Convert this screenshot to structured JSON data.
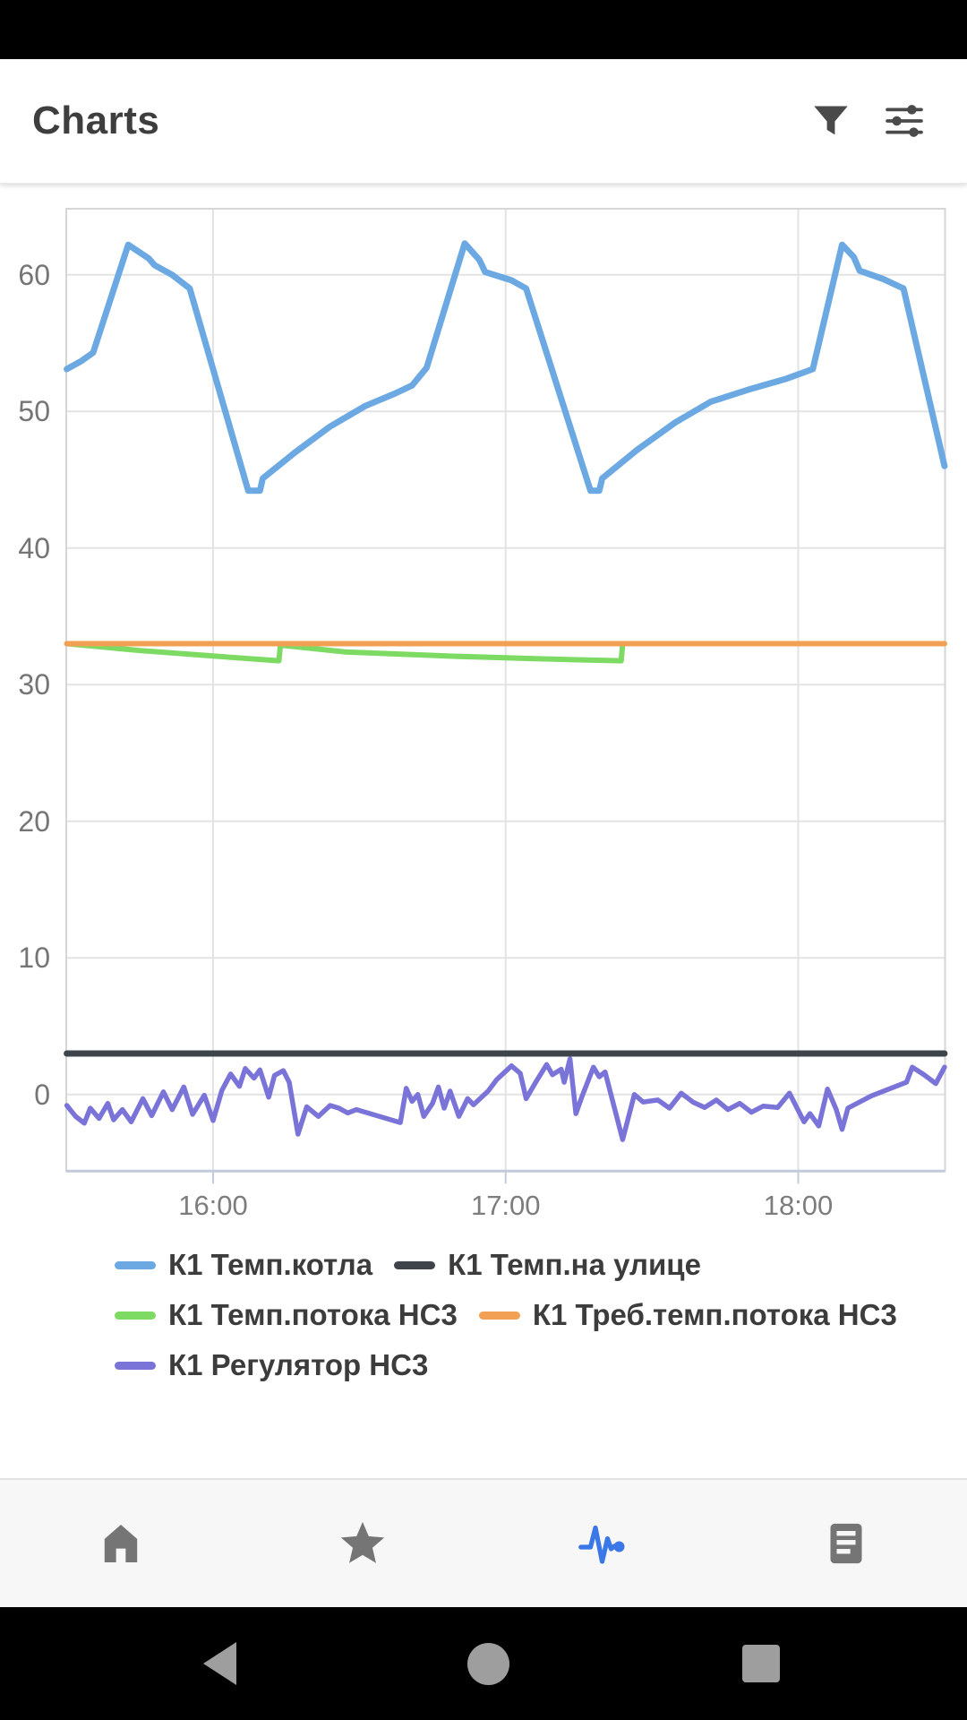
{
  "header": {
    "title": "Charts",
    "actions": [
      {
        "name": "filter",
        "icon": "funnel-icon"
      },
      {
        "name": "settings",
        "icon": "tune-icon"
      }
    ]
  },
  "chart_data": {
    "type": "line",
    "title": "",
    "xlabel": "",
    "ylabel": "",
    "grid": true,
    "legend_position": "bottom",
    "x_axis": {
      "domain_hours": [
        15.5,
        18.5
      ],
      "ticks": [
        {
          "t": 16,
          "label": "16:00"
        },
        {
          "t": 17,
          "label": "17:00"
        },
        {
          "t": 18,
          "label": "18:00"
        }
      ]
    },
    "y_axis": {
      "domain": [
        -5.6,
        64.8
      ],
      "ticks": [
        0,
        10,
        20,
        30,
        40,
        50,
        60
      ]
    },
    "series": [
      {
        "name": "К1 Темп.котла",
        "color": "#6ca9e2",
        "width": 7,
        "points": [
          [
            15.5,
            53.1
          ],
          [
            15.55,
            53.7
          ],
          [
            15.59,
            54.3
          ],
          [
            15.71,
            62.2
          ],
          [
            15.78,
            61.2
          ],
          [
            15.8,
            60.7
          ],
          [
            15.86,
            60.0
          ],
          [
            15.92,
            59.0
          ],
          [
            16.12,
            44.2
          ],
          [
            16.16,
            44.2
          ],
          [
            16.17,
            45.1
          ],
          [
            16.28,
            47.0
          ],
          [
            16.4,
            48.9
          ],
          [
            16.52,
            50.4
          ],
          [
            16.62,
            51.3
          ],
          [
            16.68,
            51.9
          ],
          [
            16.73,
            53.2
          ],
          [
            16.86,
            62.3
          ],
          [
            16.91,
            61.1
          ],
          [
            16.93,
            60.2
          ],
          [
            17.02,
            59.6
          ],
          [
            17.07,
            59.0
          ],
          [
            17.29,
            44.2
          ],
          [
            17.32,
            44.2
          ],
          [
            17.33,
            45.1
          ],
          [
            17.45,
            47.2
          ],
          [
            17.58,
            49.2
          ],
          [
            17.7,
            50.7
          ],
          [
            17.83,
            51.6
          ],
          [
            17.96,
            52.4
          ],
          [
            18.05,
            53.1
          ],
          [
            18.15,
            62.2
          ],
          [
            18.19,
            61.3
          ],
          [
            18.21,
            60.3
          ],
          [
            18.29,
            59.7
          ],
          [
            18.36,
            59.0
          ],
          [
            18.5,
            46.0
          ]
        ]
      },
      {
        "name": "К1 Темп.на улице",
        "color": "#3f444a",
        "width": 7,
        "points": [
          [
            15.5,
            3
          ],
          [
            18.5,
            3
          ]
        ]
      },
      {
        "name": "К1 Темп.потока НС3",
        "color": "#7ddb63",
        "width": 6,
        "points": [
          [
            15.5,
            33.0
          ],
          [
            15.75,
            32.5
          ],
          [
            16.0,
            32.1
          ],
          [
            16.225,
            31.75
          ],
          [
            16.23,
            32.9
          ],
          [
            16.45,
            32.4
          ],
          [
            16.8,
            32.1
          ],
          [
            17.1,
            31.9
          ],
          [
            17.395,
            31.75
          ],
          [
            17.4,
            33.0
          ],
          [
            18.5,
            33.0
          ]
        ]
      },
      {
        "name": "К1 Треб.темп.потока НС3",
        "color": "#f2a054",
        "width": 6,
        "points": [
          [
            15.5,
            33
          ],
          [
            18.5,
            33
          ]
        ]
      },
      {
        "name": "К1 Регулятор НС3",
        "color": "#7b74d8",
        "width": 5.5,
        "points": [
          [
            15.5,
            -0.8
          ],
          [
            15.53,
            -1.6
          ],
          [
            15.56,
            -2.1
          ],
          [
            15.58,
            -1.0
          ],
          [
            15.61,
            -1.75
          ],
          [
            15.64,
            -0.65
          ],
          [
            15.66,
            -1.85
          ],
          [
            15.69,
            -1.1
          ],
          [
            15.72,
            -2.0
          ],
          [
            15.76,
            -0.3
          ],
          [
            15.79,
            -1.55
          ],
          [
            15.83,
            0.2
          ],
          [
            15.86,
            -1.1
          ],
          [
            15.9,
            0.55
          ],
          [
            15.93,
            -1.45
          ],
          [
            15.97,
            -0.05
          ],
          [
            16.0,
            -1.9
          ],
          [
            16.03,
            0.3
          ],
          [
            16.06,
            1.5
          ],
          [
            16.09,
            0.6
          ],
          [
            16.11,
            1.9
          ],
          [
            16.14,
            1.2
          ],
          [
            16.16,
            1.8
          ],
          [
            16.19,
            -0.2
          ],
          [
            16.21,
            1.4
          ],
          [
            16.24,
            1.75
          ],
          [
            16.26,
            0.9
          ],
          [
            16.29,
            -2.9
          ],
          [
            16.32,
            -0.9
          ],
          [
            16.36,
            -1.6
          ],
          [
            16.4,
            -0.8
          ],
          [
            16.43,
            -1.0
          ],
          [
            16.46,
            -1.35
          ],
          [
            16.49,
            -1.1
          ],
          [
            16.64,
            -2.05
          ],
          [
            16.66,
            0.45
          ],
          [
            16.68,
            -0.5
          ],
          [
            16.7,
            0.0
          ],
          [
            16.72,
            -1.6
          ],
          [
            16.75,
            -0.65
          ],
          [
            16.77,
            0.55
          ],
          [
            16.79,
            -1.0
          ],
          [
            16.81,
            0.25
          ],
          [
            16.84,
            -1.6
          ],
          [
            16.87,
            -0.3
          ],
          [
            16.89,
            -0.75
          ],
          [
            16.94,
            0.25
          ],
          [
            16.97,
            1.1
          ],
          [
            17.02,
            2.1
          ],
          [
            17.05,
            1.55
          ],
          [
            17.07,
            -0.3
          ],
          [
            17.1,
            0.8
          ],
          [
            17.14,
            2.2
          ],
          [
            17.16,
            1.45
          ],
          [
            17.19,
            1.85
          ],
          [
            17.2,
            0.9
          ],
          [
            17.22,
            2.6
          ],
          [
            17.24,
            -1.4
          ],
          [
            17.26,
            -0.2
          ],
          [
            17.3,
            2.0
          ],
          [
            17.32,
            1.3
          ],
          [
            17.34,
            1.65
          ],
          [
            17.4,
            -3.3
          ],
          [
            17.44,
            0.0
          ],
          [
            17.47,
            -0.55
          ],
          [
            17.52,
            -0.4
          ],
          [
            17.56,
            -1.0
          ],
          [
            17.6,
            0.1
          ],
          [
            17.64,
            -0.55
          ],
          [
            17.68,
            -0.95
          ],
          [
            17.72,
            -0.4
          ],
          [
            17.76,
            -1.1
          ],
          [
            17.8,
            -0.65
          ],
          [
            17.84,
            -1.3
          ],
          [
            17.88,
            -0.85
          ],
          [
            17.93,
            -0.95
          ],
          [
            17.97,
            0.1
          ],
          [
            18.02,
            -2.0
          ],
          [
            18.04,
            -1.4
          ],
          [
            18.07,
            -2.3
          ],
          [
            18.1,
            0.4
          ],
          [
            18.13,
            -1.1
          ],
          [
            18.15,
            -2.55
          ],
          [
            18.17,
            -1.0
          ],
          [
            18.25,
            -0.1
          ],
          [
            18.37,
            0.9
          ],
          [
            18.39,
            2.0
          ],
          [
            18.43,
            1.45
          ],
          [
            18.47,
            0.8
          ],
          [
            18.5,
            2.0
          ]
        ]
      }
    ]
  },
  "legend": {
    "rows": [
      [
        0,
        1
      ],
      [
        2,
        3
      ],
      [
        4
      ]
    ]
  },
  "bottom_nav": {
    "items": [
      {
        "name": "home",
        "icon": "home-icon",
        "active": false
      },
      {
        "name": "favorites",
        "icon": "star-icon",
        "active": false
      },
      {
        "name": "charts",
        "icon": "activity-icon",
        "active": true
      },
      {
        "name": "log",
        "icon": "list-icon",
        "active": false
      }
    ],
    "active_color": "#3b78e7",
    "inactive_color": "#757575"
  },
  "android_nav": {
    "buttons": [
      "back",
      "home",
      "recents"
    ],
    "icon_color": "#9e9e9e",
    "bar_color": "#000000"
  },
  "colors": {
    "status_bar": "#000000",
    "header_icon": "#4a4a4a",
    "title_text": "#3e3e3e",
    "y_axis_label": "#757575",
    "x_axis_label": "#7d7d7d",
    "grid_line": "#e3e3e3",
    "plot_border": "#d6d6d6",
    "axis_bottom_line": "#c2cbdc",
    "legend_text": "#3c3c3c",
    "nav_bar_bg": "#f7f7f7",
    "divider": "#e2e2e2"
  }
}
